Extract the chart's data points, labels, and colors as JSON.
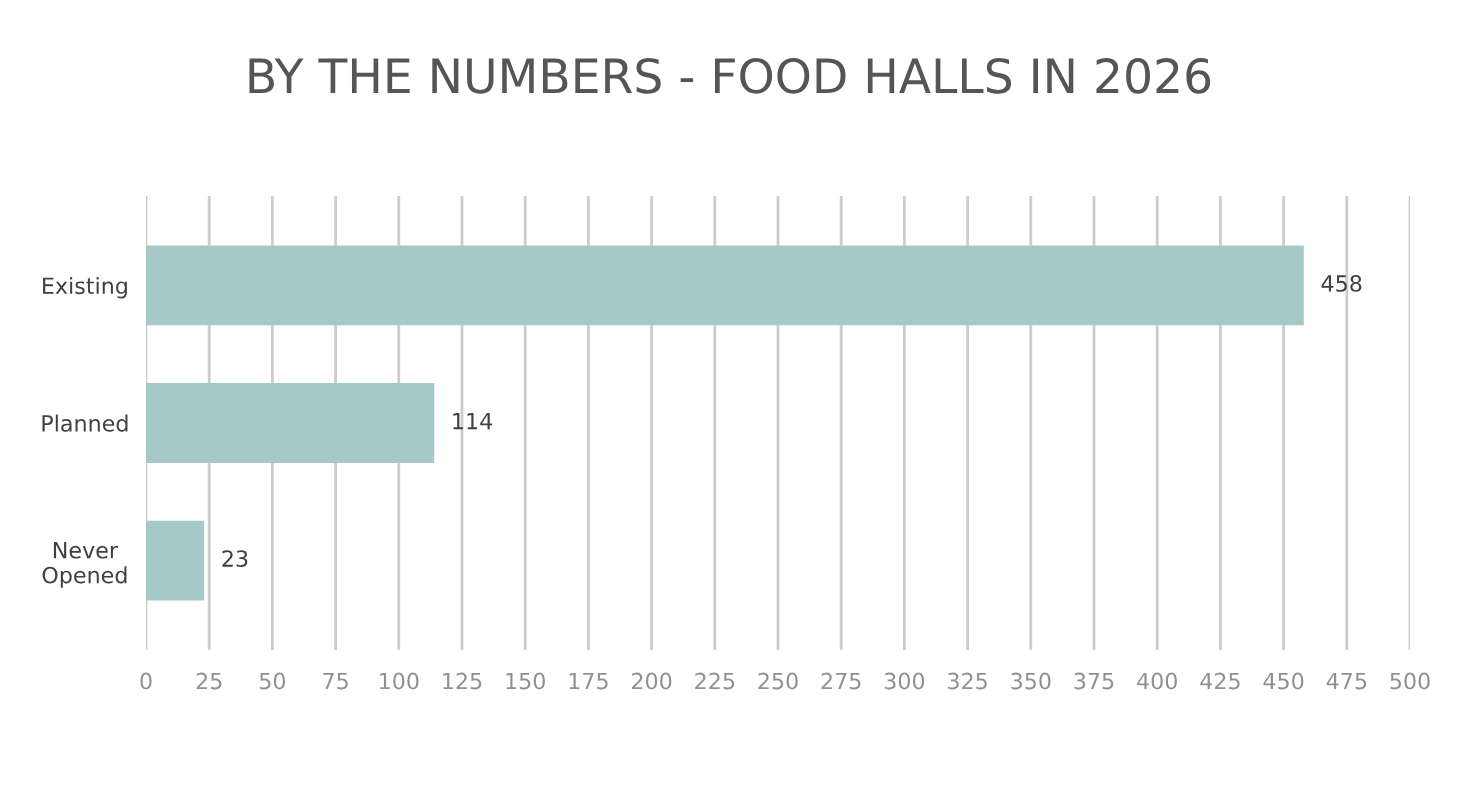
{
  "chart_data": {
    "type": "bar",
    "orientation": "horizontal",
    "title": "BY THE NUMBERS - FOOD HALLS IN 2026",
    "categories": [
      "Existing",
      "Planned",
      "Never\nOpened"
    ],
    "values": [
      458,
      114,
      23
    ],
    "color": "#a5c8c8",
    "xlim": [
      0,
      500
    ],
    "xticks": [
      0,
      25,
      50,
      75,
      100,
      125,
      150,
      175,
      200,
      225,
      250,
      275,
      300,
      325,
      350,
      375,
      400,
      425,
      450,
      475,
      500
    ],
    "grid": "x",
    "data_labels": true
  }
}
